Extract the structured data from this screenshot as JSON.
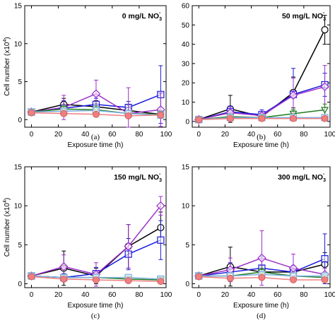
{
  "chart_data": [
    {
      "type": "line",
      "panel_letter": "(a)",
      "title_main": "0 mg/L NO",
      "title_sub": "3",
      "title_sup": "-",
      "xlabel": "Exposure time (h)",
      "ylabel_main": "Cell number (x10",
      "ylabel_sup": "4",
      "ylabel_end": ")",
      "xlim": [
        -5,
        100
      ],
      "ylim": [
        -1,
        15
      ],
      "xticks": [
        0,
        20,
        40,
        60,
        80,
        100
      ],
      "yticks": [
        0,
        5,
        10,
        15
      ],
      "x": [
        0,
        24,
        48,
        72,
        96
      ],
      "series": [
        {
          "color": "#000000",
          "marker": "circle",
          "values": [
            1.0,
            2.0,
            1.7,
            1.2,
            0.7
          ],
          "errors": [
            0.2,
            0.8,
            0.8,
            0.7,
            0.5
          ]
        },
        {
          "color": "#1a1adc",
          "marker": "square",
          "values": [
            1.0,
            1.5,
            2.0,
            1.6,
            3.3
          ],
          "errors": [
            0.2,
            1.0,
            0.8,
            0.8,
            3.8
          ]
        },
        {
          "color": "#9b30c8",
          "marker": "diamond",
          "values": [
            1.0,
            1.6,
            3.4,
            0.8,
            1.3
          ],
          "errors": [
            0.2,
            1.6,
            1.8,
            3.4,
            2.2
          ]
        },
        {
          "color": "#1e7a1e",
          "marker": "triangle",
          "values": [
            1.0,
            1.4,
            1.3,
            0.8,
            0.7
          ],
          "errors": [
            0.2,
            0.5,
            0.5,
            0.4,
            0.3
          ]
        },
        {
          "color": "#7fb0e0",
          "marker": "square",
          "values": [
            1.0,
            1.1,
            1.2,
            0.8,
            0.6
          ],
          "errors": [
            0.2,
            0.3,
            0.3,
            0.3,
            0.3
          ]
        },
        {
          "color": "#f08080",
          "marker": "filled-circle",
          "values": [
            0.9,
            0.8,
            0.7,
            0.5,
            0.6
          ],
          "errors": [
            0.2,
            0.2,
            0.2,
            0.2,
            0.2
          ]
        }
      ]
    },
    {
      "type": "line",
      "panel_letter": "(b)",
      "title_main": "50 mg/L NO",
      "title_sub": "3",
      "title_sup": "-",
      "xlabel": "Exposure time (h)",
      "ylabel_main": "",
      "ylabel_sup": "",
      "ylabel_end": "",
      "xlim": [
        -5,
        100
      ],
      "ylim": [
        -3,
        60
      ],
      "xticks": [
        0,
        20,
        40,
        60,
        80,
        100
      ],
      "yticks": [
        0,
        10,
        20,
        30,
        40,
        50,
        60
      ],
      "x": [
        0,
        24,
        48,
        72,
        96
      ],
      "series": [
        {
          "color": "#000000",
          "marker": "circle",
          "values": [
            1.0,
            6.5,
            2.5,
            15.0,
            47.5
          ],
          "errors": [
            0.5,
            7.0,
            1.5,
            8.0,
            7.5
          ]
        },
        {
          "color": "#1a1adc",
          "marker": "square",
          "values": [
            1.0,
            5.0,
            3.5,
            14.0,
            19.0
          ],
          "errors": [
            0.5,
            3.0,
            2.5,
            13.5,
            6.0
          ]
        },
        {
          "color": "#9b30c8",
          "marker": "diamond",
          "values": [
            1.0,
            4.5,
            3.0,
            13.5,
            18.0
          ],
          "errors": [
            0.5,
            3.0,
            2.0,
            9.0,
            11.0
          ]
        },
        {
          "color": "#1e7a1e",
          "marker": "triangle",
          "values": [
            1.0,
            2.5,
            2.0,
            4.0,
            6.0
          ],
          "errors": [
            0.5,
            1.0,
            1.0,
            2.0,
            3.0
          ]
        },
        {
          "color": "#7fb0e0",
          "marker": "square",
          "values": [
            1.0,
            2.0,
            2.0,
            2.0,
            2.0
          ],
          "errors": [
            0.5,
            0.8,
            0.8,
            1.0,
            1.0
          ]
        },
        {
          "color": "#f08080",
          "marker": "filled-circle",
          "values": [
            0.9,
            1.5,
            1.5,
            1.5,
            1.5
          ],
          "errors": [
            0.3,
            0.5,
            0.5,
            0.5,
            0.5
          ]
        }
      ]
    },
    {
      "type": "line",
      "panel_letter": "(c)",
      "title_main": "150 mg/L NO",
      "title_sub": "3",
      "title_sup": "-",
      "xlabel": "Exposure time (h)",
      "ylabel_main": "Cell number (x10",
      "ylabel_sup": "4",
      "ylabel_end": ")",
      "xlim": [
        -5,
        100
      ],
      "ylim": [
        -0.5,
        15
      ],
      "xticks": [
        0,
        20,
        40,
        60,
        80,
        100
      ],
      "yticks": [
        0,
        5,
        10,
        15
      ],
      "x": [
        0,
        24,
        48,
        72,
        96
      ],
      "series": [
        {
          "color": "#000000",
          "marker": "circle",
          "values": [
            1.0,
            2.0,
            1.0,
            4.8,
            7.2
          ],
          "errors": [
            0.3,
            2.2,
            1.0,
            2.8,
            2.0
          ]
        },
        {
          "color": "#1a1adc",
          "marker": "square",
          "values": [
            1.0,
            0.8,
            1.3,
            3.8,
            5.6
          ],
          "errors": [
            0.3,
            0.5,
            0.8,
            2.0,
            2.5
          ]
        },
        {
          "color": "#9b30c8",
          "marker": "diamond",
          "values": [
            1.0,
            2.2,
            1.2,
            4.8,
            10.0
          ],
          "errors": [
            0.3,
            1.5,
            1.5,
            2.8,
            1.2
          ]
        },
        {
          "color": "#1e7a1e",
          "marker": "triangle",
          "values": [
            1.0,
            0.8,
            0.8,
            0.6,
            0.5
          ],
          "errors": [
            0.2,
            0.3,
            0.3,
            0.3,
            0.3
          ]
        },
        {
          "color": "#7fb0e0",
          "marker": "square",
          "values": [
            1.0,
            0.8,
            0.8,
            0.8,
            0.6
          ],
          "errors": [
            0.2,
            0.3,
            0.3,
            0.3,
            0.3
          ]
        },
        {
          "color": "#f08080",
          "marker": "filled-circle",
          "values": [
            0.9,
            0.6,
            0.5,
            0.4,
            0.3
          ],
          "errors": [
            0.2,
            0.2,
            0.2,
            0.2,
            0.2
          ]
        }
      ]
    },
    {
      "type": "line",
      "panel_letter": "(d)",
      "title_main": "300 mg/L NO",
      "title_sub": "3",
      "title_sup": "-",
      "xlabel": "Exposure time (h)",
      "ylabel_main": "",
      "ylabel_sup": "",
      "ylabel_end": "",
      "xlim": [
        -5,
        100
      ],
      "ylim": [
        -0.5,
        15
      ],
      "xticks": [
        0,
        20,
        40,
        60,
        80,
        100
      ],
      "yticks": [
        0,
        5,
        10,
        15
      ],
      "x": [
        0,
        24,
        48,
        72,
        96
      ],
      "series": [
        {
          "color": "#000000",
          "marker": "circle",
          "values": [
            1.0,
            2.2,
            1.5,
            1.5,
            2.5
          ],
          "errors": [
            0.3,
            2.5,
            0.8,
            0.8,
            1.5
          ]
        },
        {
          "color": "#1a1adc",
          "marker": "square",
          "values": [
            1.0,
            1.5,
            2.0,
            1.5,
            3.2
          ],
          "errors": [
            0.3,
            1.2,
            1.5,
            0.8,
            3.2
          ]
        },
        {
          "color": "#9b30c8",
          "marker": "diamond",
          "values": [
            1.0,
            1.8,
            3.3,
            2.0,
            1.2
          ],
          "errors": [
            0.3,
            1.5,
            3.5,
            1.8,
            0.8
          ]
        },
        {
          "color": "#1e7a1e",
          "marker": "triangle",
          "values": [
            1.0,
            1.0,
            1.5,
            1.0,
            0.8
          ],
          "errors": [
            0.2,
            0.4,
            0.5,
            0.4,
            0.3
          ]
        },
        {
          "color": "#7fb0e0",
          "marker": "square",
          "values": [
            1.0,
            1.0,
            1.2,
            1.0,
            1.0
          ],
          "errors": [
            0.2,
            0.3,
            0.3,
            0.3,
            0.3
          ]
        },
        {
          "color": "#f08080",
          "marker": "filled-circle",
          "values": [
            0.9,
            0.7,
            0.8,
            0.5,
            0.5
          ],
          "errors": [
            0.2,
            0.2,
            0.2,
            0.2,
            0.2
          ]
        }
      ]
    }
  ]
}
